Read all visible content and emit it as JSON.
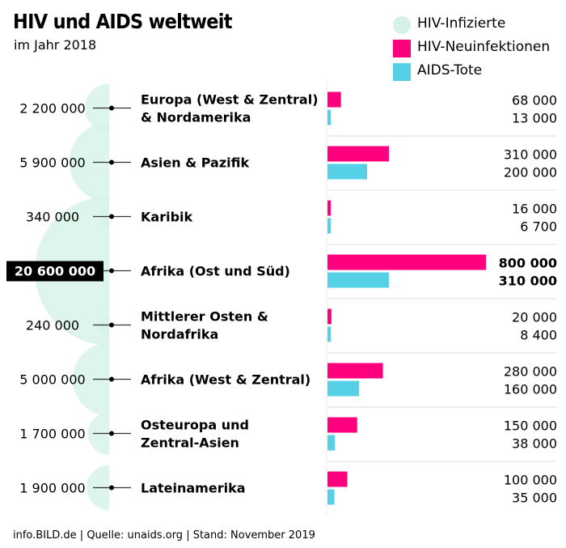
{
  "title": "HIV und AIDS weltweit",
  "subtitle": "im Jahr 2018",
  "legend": [
    {
      "label": "HIV-Infizierte",
      "color": "#d6f2e6",
      "shape": "circle"
    },
    {
      "label": "HIV-Neuinfektionen",
      "color": "#ff007f",
      "shape": "square"
    },
    {
      "label": "AIDS-Tote",
      "color": "#56d0e6",
      "shape": "square"
    }
  ],
  "footer": "info.BILD.de | Quelle: unaids.org | Stand: November 2019",
  "chart_data": {
    "type": "bar",
    "categories": [
      "Europa (West & Zentral)\n& Nordamerika",
      "Asien & Pazifik",
      "Karibik",
      "Afrika (Ost und Süd)",
      "Mittlerer Osten &\nNordafrika",
      "Afrika (West & Zentral)",
      "Osteuropa und\nZentral-Asien",
      "Lateinamerika"
    ],
    "infected": [
      2200000,
      5900000,
      340000,
      20600000,
      240000,
      5000000,
      1700000,
      1900000
    ],
    "infected_labels": [
      "2 200 000",
      "5 900 000",
      "340 000",
      "20 600 000",
      "240 000",
      "5 000 000",
      "1 700 000",
      "1 900 000"
    ],
    "series": [
      {
        "name": "HIV-Neuinfektionen",
        "color": "#ff007f",
        "values": [
          68000,
          310000,
          16000,
          800000,
          20000,
          280000,
          150000,
          100000
        ],
        "labels": [
          "68 000",
          "310 000",
          "16 000",
          "800 000",
          "20 000",
          "280 000",
          "150 000",
          "100 000"
        ]
      },
      {
        "name": "AIDS-Tote",
        "color": "#56d0e6",
        "values": [
          13000,
          200000,
          6700,
          310000,
          8400,
          160000,
          38000,
          35000
        ],
        "labels": [
          "13 000",
          "200 000",
          "6 700",
          "310 000",
          "8 400",
          "160 000",
          "38 000",
          "35 000"
        ]
      }
    ],
    "highlight_index": 3,
    "xlim": [
      0,
      800000
    ]
  }
}
